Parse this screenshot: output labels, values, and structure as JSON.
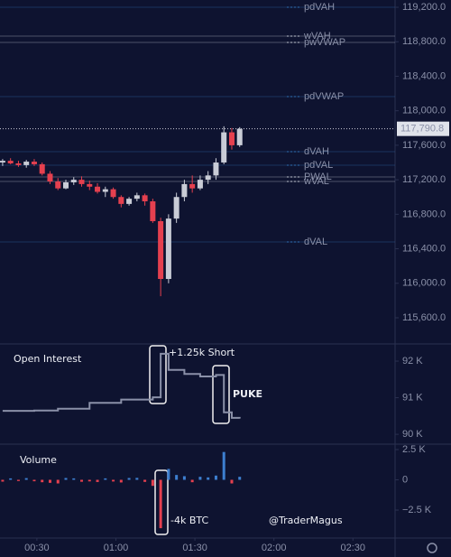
{
  "chart_data": [
    {
      "type": "candlestick",
      "x": [
        "00:17",
        "00:20",
        "00:23",
        "00:26",
        "00:29",
        "00:32",
        "00:35",
        "00:38",
        "00:41",
        "00:44",
        "00:47",
        "00:50",
        "00:53",
        "00:56",
        "00:59",
        "01:02",
        "01:05",
        "01:08",
        "01:11",
        "01:14",
        "01:17",
        "01:20",
        "01:23",
        "01:26",
        "01:29",
        "01:32",
        "01:35",
        "01:38",
        "01:41",
        "01:44",
        "01:47"
      ],
      "open": [
        117400,
        117420,
        117390,
        117370,
        117410,
        117380,
        117270,
        117180,
        117100,
        117170,
        117200,
        117150,
        117120,
        117060,
        117090,
        117000,
        116920,
        116980,
        117020,
        116950,
        116720,
        116050,
        116750,
        117000,
        117150,
        117100,
        117200,
        117250,
        117400,
        117750,
        117600
      ],
      "high": [
        117440,
        117450,
        117420,
        117430,
        117440,
        117400,
        117300,
        117220,
        117200,
        117230,
        117240,
        117190,
        117160,
        117120,
        117110,
        117020,
        117000,
        117050,
        117040,
        116980,
        116760,
        116800,
        117050,
        117200,
        117250,
        117250,
        117300,
        117450,
        117820,
        117800,
        117810
      ],
      "low": [
        117360,
        117380,
        117350,
        117340,
        117360,
        117250,
        117150,
        117080,
        117090,
        117140,
        117120,
        117080,
        117040,
        117000,
        116980,
        116880,
        116900,
        116950,
        116900,
        116700,
        115850,
        116000,
        116700,
        116950,
        117050,
        117080,
        117150,
        117200,
        117380,
        117550,
        117580
      ],
      "close": [
        117420,
        117390,
        117370,
        117410,
        117380,
        117270,
        117180,
        117100,
        117170,
        117200,
        117150,
        117120,
        117060,
        117090,
        117000,
        116920,
        116980,
        117020,
        116950,
        116720,
        116050,
        116750,
        117000,
        117150,
        117100,
        117200,
        117250,
        117400,
        117750,
        117600,
        117790.8
      ],
      "up_color": "#c9ccd6",
      "down_color": "#e5404f",
      "xlim": [
        "00:16",
        "02:46"
      ],
      "ylim": [
        115307,
        119284
      ],
      "yticks": [
        {
          "value": 119200,
          "label": "119,200.0"
        },
        {
          "value": 118800,
          "label": "118,800.0"
        },
        {
          "value": 118400,
          "label": "118,400.0"
        },
        {
          "value": 118000,
          "label": "118,000.0"
        },
        {
          "value": 117600,
          "label": "117,600.0"
        },
        {
          "value": 117200,
          "label": "117,200.0"
        },
        {
          "value": 116800,
          "label": "116,800.0"
        },
        {
          "value": 116400,
          "label": "116,400.0"
        },
        {
          "value": 116000,
          "label": "116,000.0"
        },
        {
          "value": 115600,
          "label": "115,600.0"
        }
      ],
      "last_price": {
        "value": 117790.8,
        "label": "117,790.8"
      },
      "levels": [
        {
          "name": "pdVAH",
          "value": 119200,
          "color": "#2f6fb5"
        },
        {
          "name": "wVAH",
          "value": 118865,
          "color": "#c0c4d0"
        },
        {
          "name": "pwVWAP",
          "value": 118792,
          "color": "#c0c4d0"
        },
        {
          "name": "pdVWAP",
          "value": 118164,
          "color": "#2f6fb5"
        },
        {
          "name": "dVAH",
          "value": 117526,
          "color": "#2f6fb5"
        },
        {
          "name": "pdVAL",
          "value": 117369,
          "color": "#2f6fb5"
        },
        {
          "name": "PWAL",
          "value": 117233,
          "color": "#c0c4d0"
        },
        {
          "name": "wVAL",
          "value": 117180,
          "color": "#c0c4d0"
        },
        {
          "name": "dVAL",
          "value": 116479,
          "color": "#2f6fb5"
        }
      ]
    },
    {
      "type": "line",
      "title": "Open Interest",
      "annotations": [
        "+1.25k Short",
        "PUKE"
      ],
      "x": [
        "00:17",
        "00:29",
        "00:38",
        "00:50",
        "01:02",
        "01:14",
        "01:17",
        "01:20",
        "01:26",
        "01:32",
        "01:38",
        "01:41",
        "01:44",
        "01:47"
      ],
      "values": [
        90640,
        90650,
        90700,
        90860,
        90950,
        91010,
        92200,
        91760,
        91650,
        91580,
        91620,
        90600,
        90450,
        90430
      ],
      "color": "#8a90a8",
      "xlim": [
        "00:16",
        "02:46"
      ],
      "ylim": [
        89780,
        92420
      ],
      "yticks": [
        {
          "value": 92000,
          "label": "92 K"
        },
        {
          "value": 91000,
          "label": "91 K"
        },
        {
          "value": 90000,
          "label": "90 K"
        }
      ]
    },
    {
      "type": "volume",
      "title": "Volume",
      "annotations": [
        "-4k BTC"
      ],
      "x": [
        "00:17",
        "00:20",
        "00:23",
        "00:26",
        "00:29",
        "00:32",
        "00:35",
        "00:38",
        "00:41",
        "00:44",
        "00:47",
        "00:50",
        "00:53",
        "00:56",
        "00:59",
        "01:02",
        "01:05",
        "01:08",
        "01:11",
        "01:14",
        "01:17",
        "01:20",
        "01:23",
        "01:26",
        "01:29",
        "01:32",
        "01:35",
        "01:38",
        "01:41",
        "01:44",
        "01:47"
      ],
      "values": [
        -150,
        120,
        -100,
        140,
        -120,
        -200,
        -250,
        -300,
        150,
        120,
        -160,
        -130,
        -180,
        120,
        -140,
        -220,
        150,
        160,
        -170,
        -500,
        -4000,
        900,
        400,
        300,
        -200,
        250,
        200,
        350,
        2300,
        -300,
        250
      ],
      "up_color": "#3d7fd0",
      "down_color": "#e5404f",
      "xlim": [
        "00:16",
        "02:46"
      ],
      "ylim": [
        -4739,
        2724
      ],
      "yticks": [
        {
          "value": 2500,
          "label": "2.5 K"
        },
        0,
        {
          "value": -2500,
          "label": "−2.5 K"
        }
      ],
      "xticks": [
        "00:30",
        "01:00",
        "01:30",
        "02:00",
        "02:30"
      ]
    }
  ],
  "watermark": "@TraderMagus"
}
